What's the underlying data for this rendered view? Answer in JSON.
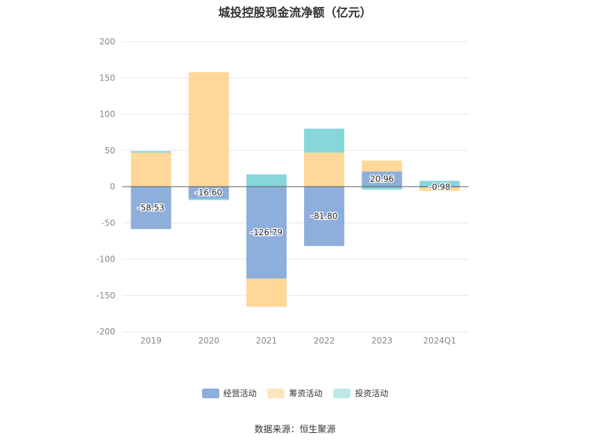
{
  "chart_data": {
    "type": "bar",
    "stacked": true,
    "title": "城投控股现金流净额（亿元）",
    "categories": [
      "2019",
      "2020",
      "2021",
      "2022",
      "2023",
      "2024Q1"
    ],
    "ylim": [
      -200,
      200
    ],
    "yticks": [
      200,
      150,
      100,
      50,
      0,
      -50,
      -100,
      -150,
      -200
    ],
    "grid": true,
    "legend_position": "bottom",
    "series": [
      {
        "name": "经营活动",
        "color": "#8eaedb",
        "values": [
          -58.53,
          -16.6,
          -126.79,
          -81.8,
          20.96,
          -0.98
        ]
      },
      {
        "name": "筹资活动",
        "color": "#ffd899",
        "values": [
          47,
          158,
          -39,
          47,
          15,
          -5
        ]
      },
      {
        "name": "投资活动",
        "color": "#86d6da",
        "values": [
          2,
          -2,
          17,
          33,
          -4,
          8
        ]
      }
    ],
    "data_labels": [
      "-58.53",
      "-16.60",
      "-126.79",
      "-81.80",
      "20.96",
      "-0.98"
    ]
  },
  "legend_swatch_colors": [
    "#8eaedb",
    "#ffe5bb",
    "#bde8ea"
  ],
  "source": "数据来源：恒生聚源"
}
